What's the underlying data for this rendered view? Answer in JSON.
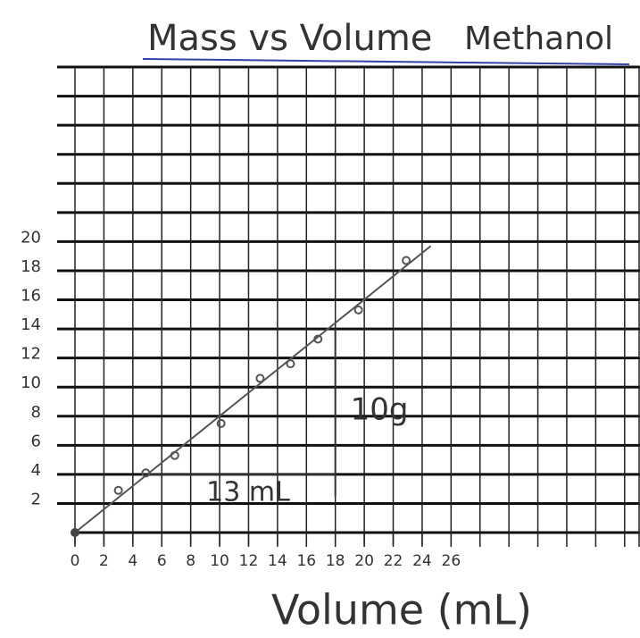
{
  "chart_data": {
    "type": "scatter",
    "title": "Mass vs Volume",
    "subtitle": "Methanol",
    "x_label": "Volume (mL)",
    "xlim": [
      0,
      39
    ],
    "ylim": [
      0,
      32
    ],
    "xticks": [
      0,
      2,
      4,
      6,
      8,
      10,
      12,
      14,
      16,
      18,
      20,
      22,
      24,
      26
    ],
    "yticks": [
      2,
      4,
      6,
      8,
      10,
      12,
      14,
      16,
      18,
      20
    ],
    "series": [
      {
        "color": "#555555",
        "x": [
          3,
          4.9,
          6.9,
          10.1,
          12.8,
          14.9,
          16.8,
          19.6,
          22.9
        ],
        "values": [
          2.9,
          4.1,
          5.3,
          7.5,
          10.6,
          11.6,
          13.3,
          15.3,
          18.7
        ]
      }
    ],
    "trendline": {
      "color": "#555555",
      "x": [
        0,
        24.6
      ],
      "values": [
        0,
        19.7
      ]
    },
    "annotations": [
      "13 mL",
      "10g"
    ],
    "title_color": "#3340a8"
  }
}
